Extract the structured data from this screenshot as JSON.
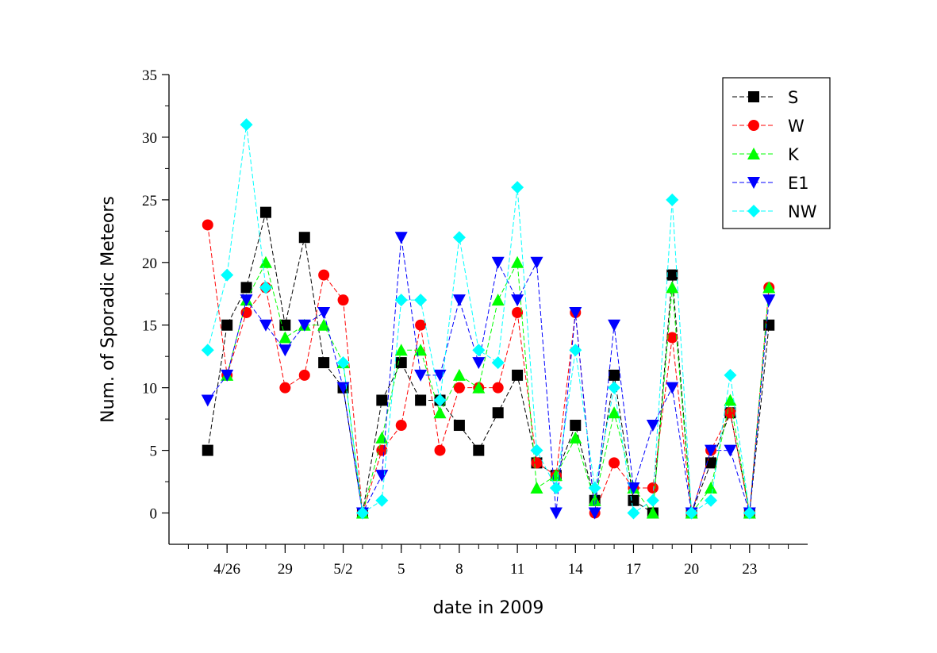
{
  "chart_data": {
    "type": "line",
    "title": "",
    "xlabel": "date in 2009",
    "ylabel": "Num. of Sporadic Meteors",
    "x": [
      1,
      2,
      3,
      4,
      5,
      6,
      7,
      8,
      9,
      10,
      11,
      12,
      13,
      14,
      15,
      16,
      17,
      18,
      19,
      20,
      21,
      22,
      23,
      24,
      25,
      26,
      27,
      28,
      29,
      30,
      31
    ],
    "x_ticks": [
      {
        "x": 2,
        "label": "4/26"
      },
      {
        "x": 5,
        "label": "29"
      },
      {
        "x": 8,
        "label": "5/2"
      },
      {
        "x": 11,
        "label": "5"
      },
      {
        "x": 14,
        "label": "8"
      },
      {
        "x": 17,
        "label": "11"
      },
      {
        "x": 20,
        "label": "14"
      },
      {
        "x": 23,
        "label": "17"
      },
      {
        "x": 26,
        "label": "20"
      },
      {
        "x": 29,
        "label": "23"
      }
    ],
    "xlim": [
      -1,
      32
    ],
    "ylim": [
      -2.5,
      35
    ],
    "y_ticks": [
      0,
      5,
      10,
      15,
      20,
      25,
      30,
      35
    ],
    "grid": false,
    "legend_position": "top-right",
    "series": [
      {
        "name": "S",
        "color": "#000000",
        "marker": "square",
        "values": [
          5,
          15,
          18,
          24,
          15,
          22,
          12,
          10,
          0,
          9,
          12,
          9,
          9,
          7,
          5,
          8,
          11,
          4,
          3,
          7,
          1,
          11,
          1,
          0,
          19,
          0,
          4,
          8,
          0,
          15,
          null
        ]
      },
      {
        "name": "W",
        "color": "#ff0000",
        "marker": "circle",
        "values": [
          23,
          11,
          16,
          18,
          10,
          11,
          19,
          17,
          0,
          5,
          7,
          15,
          5,
          10,
          10,
          10,
          16,
          4,
          3,
          16,
          0,
          4,
          2,
          2,
          14,
          0,
          5,
          8,
          0,
          18,
          null
        ]
      },
      {
        "name": "K",
        "color": "#00ff00",
        "marker": "triangle-up",
        "values": [
          null,
          11,
          17,
          20,
          14,
          15,
          15,
          12,
          0,
          6,
          13,
          13,
          8,
          11,
          10,
          17,
          20,
          2,
          3,
          6,
          1,
          8,
          2,
          0,
          18,
          0,
          2,
          9,
          0,
          18,
          null
        ]
      },
      {
        "name": "E1",
        "color": "#0000ff",
        "marker": "triangle-down",
        "values": [
          9,
          11,
          17,
          15,
          13,
          15,
          16,
          10,
          0,
          3,
          22,
          11,
          11,
          17,
          12,
          20,
          17,
          20,
          0,
          16,
          0,
          15,
          2,
          7,
          10,
          0,
          5,
          5,
          0,
          17,
          null
        ]
      },
      {
        "name": "NW",
        "color": "#00ffff",
        "marker": "diamond",
        "values": [
          13,
          19,
          31,
          18,
          null,
          null,
          null,
          12,
          0,
          1,
          17,
          17,
          9,
          22,
          13,
          12,
          26,
          5,
          2,
          13,
          2,
          10,
          0,
          1,
          25,
          0,
          1,
          11,
          0,
          null,
          null
        ]
      }
    ]
  }
}
